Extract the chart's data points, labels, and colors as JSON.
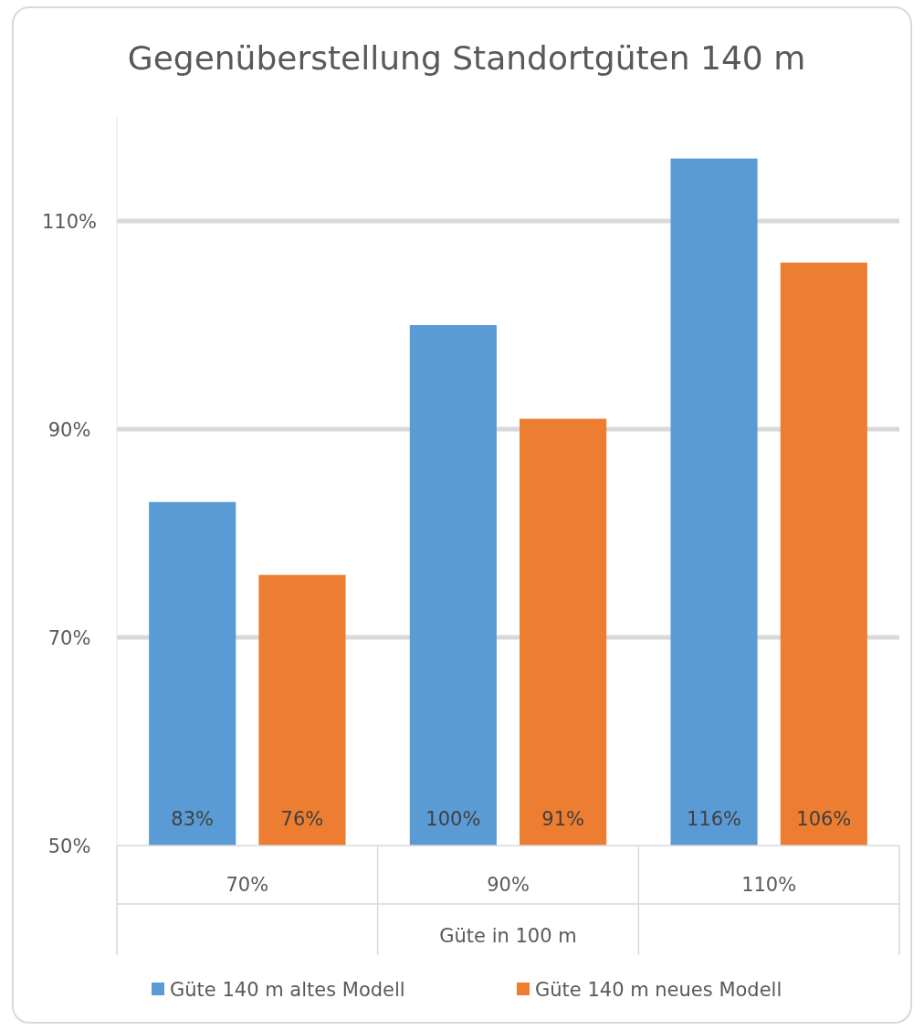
{
  "chart_data": {
    "type": "bar",
    "title": "Gegenüberstellung Standortgüten 140 m",
    "xlabel": "Güte in 100 m",
    "categories": [
      "70%",
      "90%",
      "110%"
    ],
    "series": [
      {
        "name": "Güte 140 m altes Modell",
        "color": "#5b9bd5",
        "values": [
          83,
          100,
          116
        ],
        "value_labels": [
          "83%",
          "100%",
          "116%"
        ]
      },
      {
        "name": "Güte 140 m neues Modell",
        "color": "#ed7d31",
        "values": [
          76,
          91,
          106
        ],
        "value_labels": [
          "76%",
          "91%",
          "106%"
        ]
      }
    ],
    "ylim": [
      50,
      120
    ],
    "yticks": [
      {
        "value": 50,
        "label": "50%"
      },
      {
        "value": 70,
        "label": "70%"
      },
      {
        "value": 90,
        "label": "90%"
      },
      {
        "value": 110,
        "label": "110%"
      }
    ],
    "grid": "y",
    "legend": "bottom"
  }
}
